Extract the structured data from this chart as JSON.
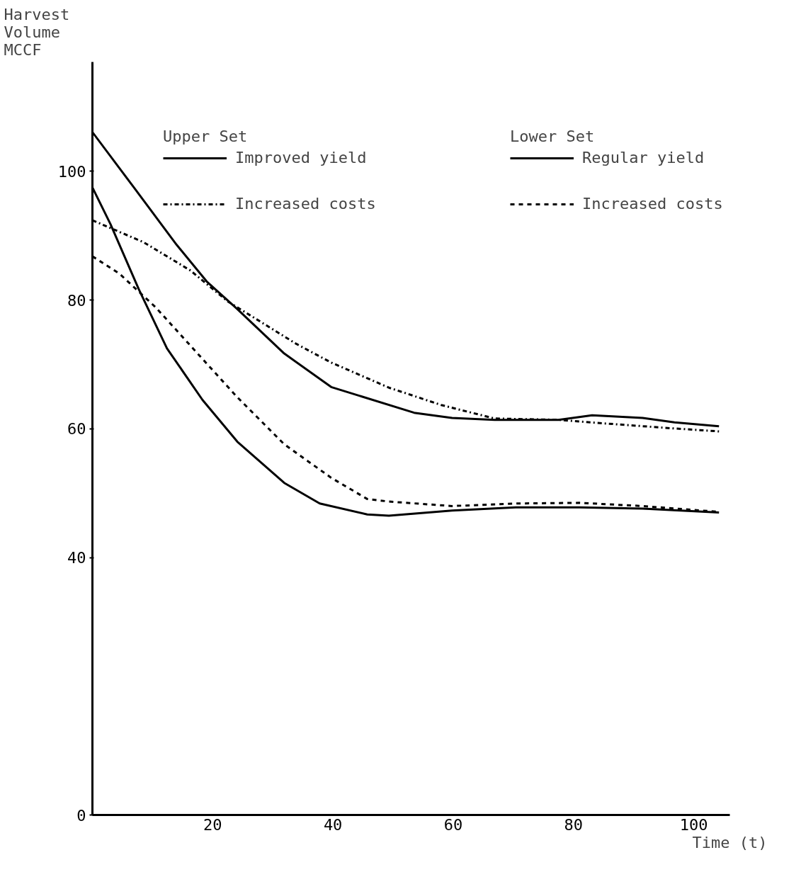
{
  "chart_data": {
    "type": "line",
    "xlabel": "Time (t)",
    "ylabel": "Harvest Volume MCCF",
    "annotations": [
      "Upper Set",
      "Lower Set"
    ],
    "xlim": [
      0,
      106
    ],
    "xticks": [
      20,
      40,
      60,
      80,
      100
    ],
    "ylim": [
      0,
      117
    ],
    "yticks": [
      0,
      40,
      60,
      80,
      100
    ],
    "grid": false,
    "legend": "top right",
    "marker": "none",
    "series": [
      {
        "name": "Improved yield",
        "color": "#000000",
        "line_style": "solid",
        "x": [
          0,
          6.9,
          14.0,
          19.0,
          24.1,
          31.9,
          39.7,
          53.5,
          59.8,
          66.9,
          77.5,
          83.1,
          91.5,
          96.8,
          104.2
        ],
        "values": [
          106.1,
          97.5,
          88.6,
          82.9,
          78.6,
          71.7,
          66.5,
          62.5,
          61.7,
          61.4,
          61.4,
          62.1,
          61.7,
          61.0,
          60.4
        ]
      },
      {
        "name": "Increased costs",
        "color": "#000000",
        "line_style": "dashdot",
        "x": [
          0,
          8.5,
          16.3,
          22.5,
          33.9,
          39.7,
          49.3,
          53.5,
          58.0,
          66.9,
          77.5,
          82.8,
          96.1,
          104.2
        ],
        "values": [
          92.4,
          89.0,
          84.6,
          79.8,
          73.2,
          70.3,
          66.4,
          65.1,
          63.7,
          61.6,
          61.4,
          61.0,
          60.1,
          59.6
        ]
      },
      {
        "name": "Regular yield",
        "color": "#000000",
        "line_style": "solid",
        "x": [
          0,
          3.0,
          7.7,
          12.4,
          18.3,
          24.1,
          31.9,
          37.8,
          45.7,
          49.3,
          59.8,
          70.4,
          81.0,
          91.5,
          104.2
        ],
        "values": [
          97.5,
          91.8,
          81.7,
          72.5,
          64.5,
          58.0,
          51.6,
          48.4,
          46.7,
          46.5,
          47.3,
          47.8,
          47.8,
          47.6,
          47.0
        ]
      },
      {
        "name": "Increased costs",
        "color": "#000000",
        "line_style": "dashed",
        "x": [
          0,
          4.5,
          10.5,
          17.1,
          24.1,
          31.9,
          39.7,
          45.7,
          49.3,
          59.8,
          70.4,
          81.0,
          91.5,
          104.2
        ],
        "values": [
          86.8,
          84.1,
          78.9,
          72.1,
          64.9,
          57.6,
          52.4,
          49.1,
          48.7,
          48.0,
          48.4,
          48.5,
          48.0,
          47.1
        ]
      }
    ]
  }
}
